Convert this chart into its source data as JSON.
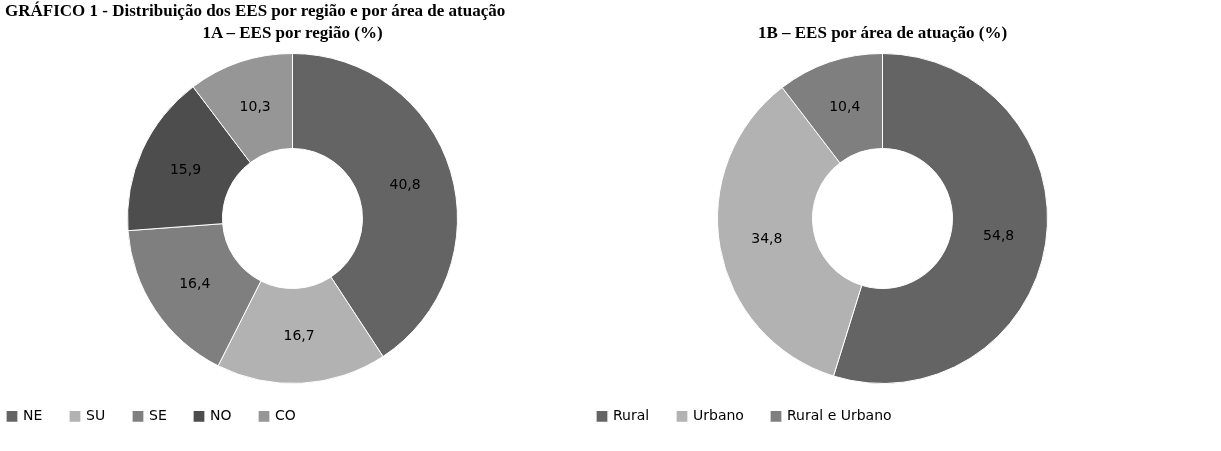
{
  "chart_data": [
    {
      "type": "donut",
      "title": "1A – EES por região (%)",
      "annotations": [
        "GRÁFICO 1 - Distribuição dos EES por região e por área de atuação"
      ],
      "categories": [
        "NE",
        "SU",
        "SE",
        "NO",
        "CO"
      ],
      "values": [
        40.8,
        16.7,
        16.4,
        15.9,
        10.3
      ],
      "value_labels": [
        "40,8",
        "16,7",
        "16,4",
        "15,9",
        "10,3"
      ],
      "colors": [
        "#646464",
        "#b2b2b2",
        "#7f7f7f",
        "#4d4d4d",
        "#969696"
      ],
      "legend": "bottom"
    },
    {
      "type": "donut",
      "title": "1B – EES por área de atuação (%)",
      "categories": [
        "Rural",
        "Urbano",
        "Rural e Urbano"
      ],
      "values": [
        54.8,
        34.8,
        10.4
      ],
      "value_labels": [
        "54,8",
        "34,8",
        "10,4"
      ],
      "colors": [
        "#646464",
        "#b2b2b2",
        "#7f7f7f"
      ],
      "legend": "bottom"
    }
  ]
}
